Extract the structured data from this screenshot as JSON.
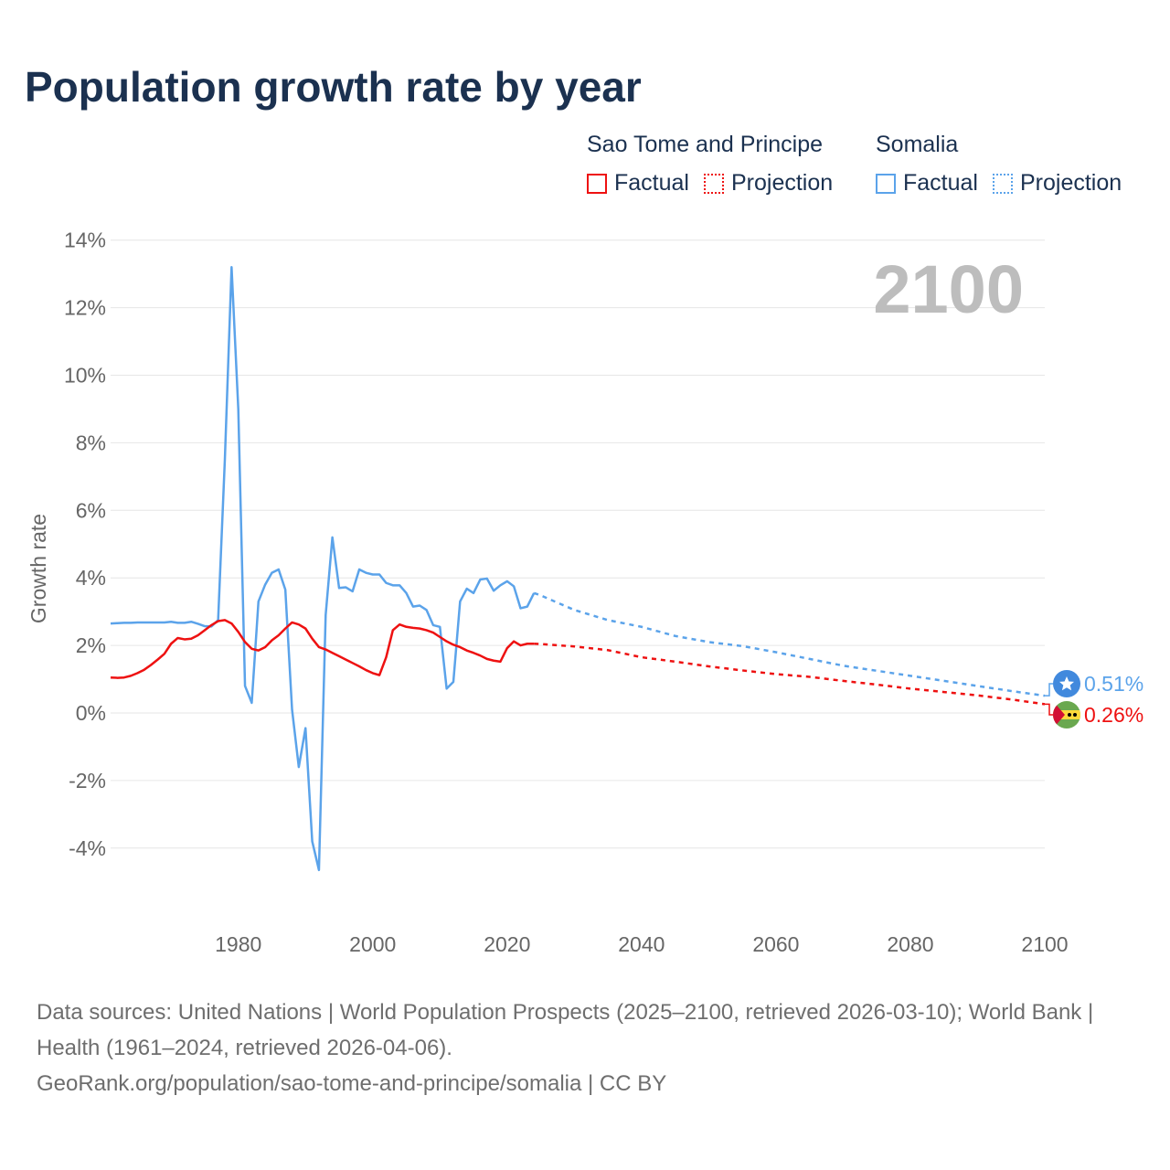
{
  "title": "Population growth rate by year",
  "legend": {
    "groups": [
      {
        "name": "Sao Tome and Principe",
        "factual": "Factual",
        "projection": "Projection",
        "color": "#ee1111"
      },
      {
        "name": "Somalia",
        "factual": "Factual",
        "projection": "Projection",
        "color": "#5ba3ea"
      }
    ]
  },
  "year_label": "2100",
  "footer": {
    "sources": "Data sources: United Nations | World Population Prospects (2025–2100, retrieved 2026-03-10); World Bank | Health (1961–2024, retrieved 2026-04-06).",
    "link": "GeoRank.org/population/sao-tome-and-principe/somalia | CC BY"
  },
  "chart_data": {
    "type": "line",
    "title": "Population growth rate by year",
    "xlabel": "",
    "ylabel": "Growth rate",
    "xlim": [
      1961,
      2100
    ],
    "ylim": [
      -6,
      14
    ],
    "x_ticks": [
      "1980",
      "2000",
      "2020",
      "2040",
      "2060",
      "2080",
      "2100"
    ],
    "y_ticks": [
      "14%",
      "12%",
      "10%",
      "8%",
      "6%",
      "4%",
      "2%",
      "0%",
      "-2%",
      "-4%"
    ],
    "grid": true,
    "series": [
      {
        "name": "Sao Tome and Principe",
        "color": "#ee1111",
        "end_label": "0.26%",
        "factual": {
          "x": [
            1961,
            1962,
            1963,
            1964,
            1965,
            1966,
            1967,
            1968,
            1969,
            1970,
            1971,
            1972,
            1973,
            1974,
            1975,
            1976,
            1977,
            1978,
            1979,
            1980,
            1981,
            1982,
            1983,
            1984,
            1985,
            1986,
            1987,
            1988,
            1989,
            1990,
            1991,
            1992,
            1993,
            1994,
            1995,
            1996,
            1997,
            1998,
            1999,
            2000,
            2001,
            2002,
            2003,
            2004,
            2005,
            2006,
            2007,
            2008,
            2009,
            2010,
            2011,
            2012,
            2013,
            2014,
            2015,
            2016,
            2017,
            2018,
            2019,
            2020,
            2021,
            2022,
            2023,
            2024
          ],
          "y": [
            1.05,
            1.04,
            1.05,
            1.1,
            1.18,
            1.28,
            1.42,
            1.58,
            1.75,
            2.05,
            2.22,
            2.18,
            2.2,
            2.3,
            2.45,
            2.6,
            2.72,
            2.75,
            2.65,
            2.4,
            2.1,
            1.9,
            1.85,
            1.95,
            2.15,
            2.3,
            2.5,
            2.68,
            2.62,
            2.5,
            2.2,
            1.95,
            1.88,
            1.78,
            1.68,
            1.58,
            1.48,
            1.38,
            1.27,
            1.18,
            1.12,
            1.65,
            2.45,
            2.62,
            2.55,
            2.52,
            2.5,
            2.45,
            2.38,
            2.25,
            2.12,
            2.02,
            1.95,
            1.85,
            1.78,
            1.7,
            1.6,
            1.55,
            1.52,
            1.92,
            2.12,
            2.0,
            2.05,
            2.05
          ]
        },
        "projection": {
          "x": [
            2024,
            2025,
            2030,
            2035,
            2040,
            2045,
            2050,
            2055,
            2060,
            2065,
            2070,
            2075,
            2080,
            2085,
            2090,
            2095,
            2100
          ],
          "y": [
            2.05,
            2.04,
            1.97,
            1.86,
            1.65,
            1.52,
            1.38,
            1.26,
            1.15,
            1.07,
            0.95,
            0.84,
            0.72,
            0.62,
            0.52,
            0.4,
            0.26
          ]
        }
      },
      {
        "name": "Somalia",
        "color": "#5ba3ea",
        "end_label": "0.51%",
        "factual": {
          "x": [
            1961,
            1962,
            1963,
            1964,
            1965,
            1966,
            1967,
            1968,
            1969,
            1970,
            1971,
            1972,
            1973,
            1974,
            1975,
            1976,
            1977,
            1978,
            1979,
            1980,
            1981,
            1982,
            1983,
            1984,
            1985,
            1986,
            1987,
            1988,
            1989,
            1990,
            1991,
            1992,
            1993,
            1994,
            1995,
            1996,
            1997,
            1998,
            1999,
            2000,
            2001,
            2002,
            2003,
            2004,
            2005,
            2006,
            2007,
            2008,
            2009,
            2010,
            2011,
            2012,
            2013,
            2014,
            2015,
            2016,
            2017,
            2018,
            2019,
            2020,
            2021,
            2022,
            2023,
            2024
          ],
          "y": [
            2.65,
            2.66,
            2.67,
            2.67,
            2.68,
            2.68,
            2.68,
            2.68,
            2.68,
            2.7,
            2.67,
            2.67,
            2.7,
            2.64,
            2.57,
            2.56,
            2.75,
            7.5,
            13.2,
            9.0,
            0.8,
            0.3,
            3.3,
            3.8,
            4.15,
            4.25,
            3.65,
            0.1,
            -1.6,
            -0.45,
            -3.8,
            -4.65,
            2.9,
            5.2,
            3.7,
            3.72,
            3.6,
            4.25,
            4.15,
            4.1,
            4.1,
            3.85,
            3.78,
            3.78,
            3.55,
            3.15,
            3.18,
            3.05,
            2.6,
            2.55,
            0.72,
            0.92,
            3.3,
            3.68,
            3.55,
            3.95,
            3.98,
            3.62,
            3.78,
            3.9,
            3.75,
            3.1,
            3.15,
            3.55
          ]
        },
        "projection": {
          "x": [
            2024,
            2025,
            2030,
            2035,
            2040,
            2045,
            2050,
            2055,
            2060,
            2065,
            2070,
            2075,
            2080,
            2085,
            2090,
            2095,
            2100
          ],
          "y": [
            3.55,
            3.48,
            3.05,
            2.75,
            2.55,
            2.28,
            2.1,
            1.98,
            1.8,
            1.6,
            1.4,
            1.25,
            1.1,
            0.95,
            0.8,
            0.65,
            0.51
          ]
        }
      }
    ]
  }
}
